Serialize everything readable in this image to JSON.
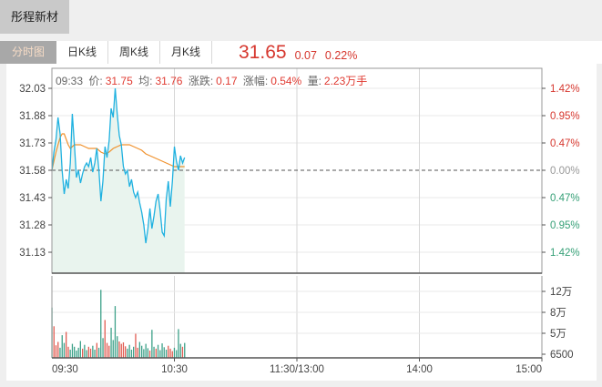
{
  "window": {
    "stock_name": "彤程新材"
  },
  "tabs": [
    {
      "label": "分时图",
      "active": true
    },
    {
      "label": "日K线",
      "active": false
    },
    {
      "label": "周K线",
      "active": false
    },
    {
      "label": "月K线",
      "active": false
    }
  ],
  "quote": {
    "price": "31.65",
    "change": "0.07",
    "change_pct": "0.22%"
  },
  "info_bar": {
    "time": "09:33",
    "price_label": "价:",
    "price": "31.75",
    "avg_label": "均:",
    "avg": "31.76",
    "change_label": "涨跌:",
    "change": "0.17",
    "pct_label": "涨幅:",
    "pct": "0.54%",
    "vol_label": "量:",
    "vol": "2.23万手"
  },
  "colors": {
    "up_red": "#d6372e",
    "down_green": "#36a077",
    "neutral_gray": "#999999",
    "axis_text": "#444444",
    "price_line": "#1fb1e0",
    "avg_line": "#f0922e",
    "area_fill": "#e9f4ee",
    "bar_up": "#e05c52",
    "bar_down": "#3da189",
    "grid_h": "#e8e8e8",
    "grid_v": "#d6d6d6",
    "frame": "#999999",
    "frame_dark": "#555555",
    "dashed_prev_close": "#555555"
  },
  "chart_data": {
    "type": "line",
    "subtype": "intraday-minute-with-volume",
    "title": "彤程新材 分时图",
    "prev_close": 31.58,
    "session_minutes": 240,
    "left_axis": [
      {
        "label": "32.03",
        "price": 32.03
      },
      {
        "label": "31.88",
        "price": 31.88
      },
      {
        "label": "31.73",
        "price": 31.73
      },
      {
        "label": "31.58",
        "price": 31.58
      },
      {
        "label": "31.43",
        "price": 31.43
      },
      {
        "label": "31.28",
        "price": 31.28
      },
      {
        "label": "31.13",
        "price": 31.13
      }
    ],
    "right_axis": [
      {
        "label": "1.42%",
        "price": 32.03,
        "tone": "up"
      },
      {
        "label": "0.95%",
        "price": 31.88,
        "tone": "up"
      },
      {
        "label": "0.47%",
        "price": 31.73,
        "tone": "up"
      },
      {
        "label": "0.00%",
        "price": 31.58,
        "tone": "zero"
      },
      {
        "label": "0.47%",
        "price": 31.43,
        "tone": "down"
      },
      {
        "label": "0.95%",
        "price": 31.28,
        "tone": "down"
      },
      {
        "label": "1.42%",
        "price": 31.13,
        "tone": "down"
      }
    ],
    "x_axis": [
      {
        "label": "09:30",
        "t": 0,
        "anchor": "start"
      },
      {
        "label": "10:30",
        "t": 60,
        "anchor": "middle"
      },
      {
        "label": "11:30/13:00",
        "t": 120,
        "anchor": "middle"
      },
      {
        "label": "14:00",
        "t": 180,
        "anchor": "middle"
      },
      {
        "label": "15:00",
        "t": 240,
        "anchor": "end"
      }
    ],
    "vol_axis": [
      {
        "label": "12万",
        "v": 12
      },
      {
        "label": "8万",
        "v": 8
      },
      {
        "label": "5万",
        "v": 5
      },
      {
        "label": "6500",
        "v": 0.65
      }
    ],
    "price_series": [
      [
        0,
        31.58
      ],
      [
        1,
        31.68
      ],
      [
        2,
        31.75
      ],
      [
        3,
        31.87
      ],
      [
        4,
        31.78
      ],
      [
        5,
        31.58
      ],
      [
        6,
        31.45
      ],
      [
        7,
        31.53
      ],
      [
        8,
        31.48
      ],
      [
        9,
        31.62
      ],
      [
        10,
        31.89
      ],
      [
        11,
        31.72
      ],
      [
        12,
        31.54
      ],
      [
        13,
        31.58
      ],
      [
        14,
        31.51
      ],
      [
        15,
        31.56
      ],
      [
        16,
        31.6
      ],
      [
        17,
        31.62
      ],
      [
        18,
        31.6
      ],
      [
        19,
        31.65
      ],
      [
        20,
        31.57
      ],
      [
        21,
        31.62
      ],
      [
        22,
        31.7
      ],
      [
        23,
        31.58
      ],
      [
        24,
        31.41
      ],
      [
        25,
        31.52
      ],
      [
        26,
        31.71
      ],
      [
        27,
        31.65
      ],
      [
        28,
        31.74
      ],
      [
        29,
        31.92
      ],
      [
        30,
        31.87
      ],
      [
        31,
        32.03
      ],
      [
        32,
        31.89
      ],
      [
        33,
        31.77
      ],
      [
        34,
        31.72
      ],
      [
        35,
        31.6
      ],
      [
        36,
        31.56
      ],
      [
        37,
        31.58
      ],
      [
        38,
        31.49
      ],
      [
        39,
        31.53
      ],
      [
        40,
        31.46
      ],
      [
        41,
        31.43
      ],
      [
        42,
        31.46
      ],
      [
        43,
        31.4
      ],
      [
        44,
        31.35
      ],
      [
        45,
        31.28
      ],
      [
        46,
        31.18
      ],
      [
        47,
        31.26
      ],
      [
        48,
        31.37
      ],
      [
        49,
        31.26
      ],
      [
        50,
        31.33
      ],
      [
        51,
        31.41
      ],
      [
        52,
        31.45
      ],
      [
        53,
        31.36
      ],
      [
        54,
        31.24
      ],
      [
        55,
        31.22
      ],
      [
        56,
        31.42
      ],
      [
        57,
        31.52
      ],
      [
        58,
        31.38
      ],
      [
        59,
        31.52
      ],
      [
        60,
        31.71
      ],
      [
        61,
        31.63
      ],
      [
        62,
        31.58
      ],
      [
        63,
        31.66
      ],
      [
        64,
        31.62
      ],
      [
        65,
        31.65
      ]
    ],
    "avg_series": [
      [
        0,
        31.58
      ],
      [
        1,
        31.63
      ],
      [
        2,
        31.68
      ],
      [
        3,
        31.72
      ],
      [
        4,
        31.76
      ],
      [
        5,
        31.78
      ],
      [
        6,
        31.78
      ],
      [
        7,
        31.75
      ],
      [
        8,
        31.72
      ],
      [
        9,
        31.7
      ],
      [
        10,
        31.71
      ],
      [
        11,
        31.72
      ],
      [
        12,
        31.72
      ],
      [
        14,
        31.72
      ],
      [
        16,
        31.71
      ],
      [
        18,
        31.7
      ],
      [
        20,
        31.7
      ],
      [
        22,
        31.7
      ],
      [
        24,
        31.68
      ],
      [
        26,
        31.67
      ],
      [
        28,
        31.68
      ],
      [
        30,
        31.7
      ],
      [
        32,
        31.71
      ],
      [
        34,
        31.72
      ],
      [
        36,
        31.72
      ],
      [
        38,
        31.72
      ],
      [
        40,
        31.71
      ],
      [
        42,
        31.7
      ],
      [
        44,
        31.69
      ],
      [
        46,
        31.67
      ],
      [
        48,
        31.66
      ],
      [
        50,
        31.65
      ],
      [
        52,
        31.64
      ],
      [
        54,
        31.63
      ],
      [
        56,
        31.62
      ],
      [
        58,
        31.61
      ],
      [
        60,
        31.6
      ],
      [
        62,
        31.6
      ],
      [
        65,
        31.6
      ]
    ],
    "volume_bars": [
      [
        0,
        8.9,
        "g"
      ],
      [
        1,
        6.0,
        "r"
      ],
      [
        2,
        2.5,
        "r"
      ],
      [
        3,
        3.2,
        "r"
      ],
      [
        4,
        2.0,
        "g"
      ],
      [
        5,
        4.6,
        "g"
      ],
      [
        6,
        3.0,
        "g"
      ],
      [
        7,
        5.2,
        "r"
      ],
      [
        8,
        2.2,
        "r"
      ],
      [
        9,
        1.6,
        "g"
      ],
      [
        10,
        2.8,
        "g"
      ],
      [
        11,
        2.2,
        "g"
      ],
      [
        12,
        1.4,
        "g"
      ],
      [
        13,
        2.0,
        "g"
      ],
      [
        14,
        3.4,
        "g"
      ],
      [
        15,
        1.8,
        "r"
      ],
      [
        16,
        2.6,
        "g"
      ],
      [
        17,
        1.5,
        "g"
      ],
      [
        18,
        2.2,
        "r"
      ],
      [
        19,
        1.8,
        "r"
      ],
      [
        20,
        2.4,
        "g"
      ],
      [
        21,
        1.6,
        "g"
      ],
      [
        22,
        3.0,
        "r"
      ],
      [
        23,
        2.0,
        "g"
      ],
      [
        24,
        12.3,
        "g"
      ],
      [
        25,
        4.0,
        "g"
      ],
      [
        26,
        6.9,
        "r"
      ],
      [
        27,
        3.0,
        "r"
      ],
      [
        28,
        2.4,
        "r"
      ],
      [
        29,
        5.8,
        "g"
      ],
      [
        30,
        3.6,
        "g"
      ],
      [
        31,
        9.2,
        "g"
      ],
      [
        32,
        4.4,
        "g"
      ],
      [
        33,
        3.3,
        "r"
      ],
      [
        34,
        2.8,
        "r"
      ],
      [
        35,
        3.1,
        "r"
      ],
      [
        36,
        2.3,
        "r"
      ],
      [
        37,
        1.8,
        "g"
      ],
      [
        38,
        2.6,
        "g"
      ],
      [
        39,
        1.6,
        "g"
      ],
      [
        40,
        2.2,
        "g"
      ],
      [
        41,
        4.9,
        "r"
      ],
      [
        42,
        2.0,
        "r"
      ],
      [
        43,
        3.2,
        "g"
      ],
      [
        44,
        2.4,
        "g"
      ],
      [
        45,
        1.7,
        "g"
      ],
      [
        46,
        2.8,
        "g"
      ],
      [
        47,
        1.9,
        "g"
      ],
      [
        48,
        1.4,
        "r"
      ],
      [
        49,
        5.5,
        "g"
      ],
      [
        50,
        2.2,
        "g"
      ],
      [
        51,
        1.8,
        "r"
      ],
      [
        52,
        2.6,
        "g"
      ],
      [
        53,
        1.5,
        "g"
      ],
      [
        54,
        2.9,
        "g"
      ],
      [
        55,
        2.1,
        "g"
      ],
      [
        56,
        1.6,
        "g"
      ],
      [
        57,
        2.4,
        "r"
      ],
      [
        58,
        1.8,
        "r"
      ],
      [
        59,
        1.3,
        "r"
      ],
      [
        60,
        2.0,
        "g"
      ],
      [
        61,
        1.5,
        "g"
      ],
      [
        62,
        5.6,
        "g"
      ],
      [
        63,
        2.8,
        "g"
      ],
      [
        64,
        2.2,
        "r"
      ],
      [
        65,
        3.0,
        "g"
      ]
    ]
  }
}
